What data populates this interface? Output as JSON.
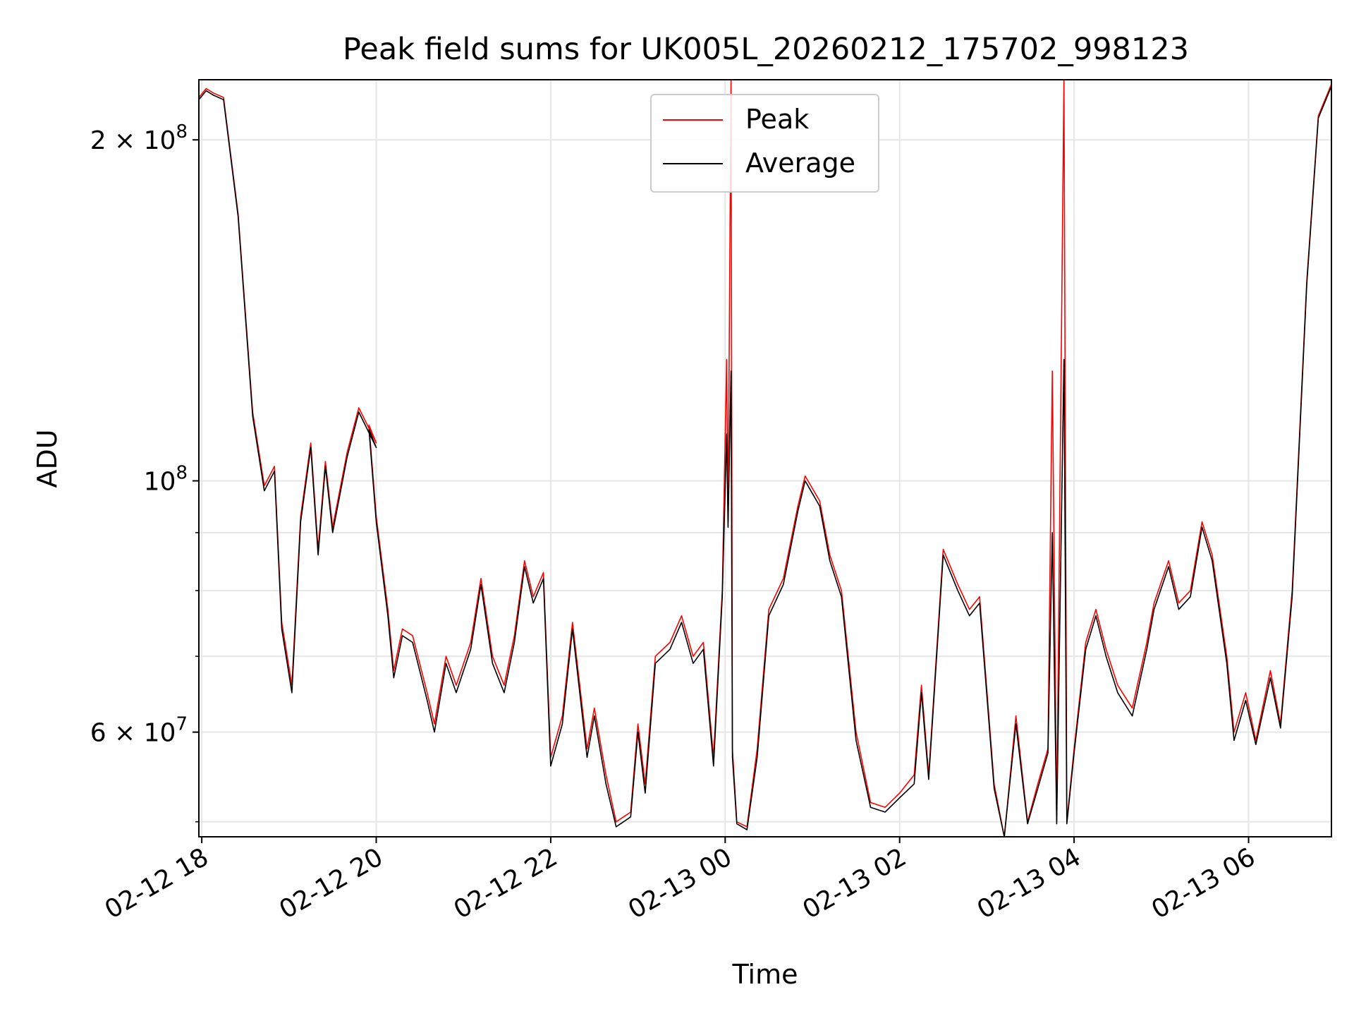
{
  "chart_data": {
    "type": "line",
    "title": "Peak field sums for UK005L_20260212_175702_998123",
    "xlabel": "Time",
    "ylabel": "ADU",
    "x_ticks": [
      "02-12 18",
      "02-12 20",
      "02-12 22",
      "02-13 00",
      "02-13 02",
      "02-13 04",
      "02-13 06"
    ],
    "y_tick_labels": {
      "6e7": "6 × 10",
      "1e8": "10",
      "2e8": "2 × 10"
    },
    "y_tick_exponent": {
      "6e7": "7",
      "1e8": "8",
      "2e8": "8"
    },
    "y_scale": "log",
    "ylim": [
      48500000,
      226000000
    ],
    "xlim": [
      "02-12 17:58",
      "02-13 06:57"
    ],
    "grid": true,
    "legend_position": "upper center",
    "series": [
      {
        "name": "Peak",
        "color": "#ff0000",
        "points": [
          [
            "02-12 17:58",
            218000000
          ],
          [
            "02-12 18:03",
            222000000
          ],
          [
            "02-12 18:08",
            220000000
          ],
          [
            "02-12 18:15",
            218000000
          ],
          [
            "02-12 18:25",
            172000000
          ],
          [
            "02-12 18:35",
            115000000
          ],
          [
            "02-12 18:43",
            99000000
          ],
          [
            "02-12 18:50",
            103000000
          ],
          [
            "02-12 18:55",
            75000000
          ],
          [
            "02-12 19:02",
            66000000
          ],
          [
            "02-12 19:08",
            93000000
          ],
          [
            "02-12 19:15",
            108000000
          ],
          [
            "02-12 19:20",
            87000000
          ],
          [
            "02-12 19:25",
            104000000
          ],
          [
            "02-12 19:30",
            91000000
          ],
          [
            "02-12 19:40",
            106000000
          ],
          [
            "02-12 19:48",
            116000000
          ],
          [
            "02-12 20:00",
            108000000
          ],
          [
            "02-12 19:55",
            112000000
          ],
          [
            "02-12 20:00",
            93000000
          ],
          [
            "02-12 20:08",
            77000000
          ],
          [
            "02-12 20:12",
            68000000
          ],
          [
            "02-12 20:18",
            74000000
          ],
          [
            "02-12 20:25",
            73000000
          ],
          [
            "02-12 20:35",
            65000000
          ],
          [
            "02-12 20:40",
            61000000
          ],
          [
            "02-12 20:48",
            70000000
          ],
          [
            "02-12 20:55",
            66000000
          ],
          [
            "02-12 21:05",
            72000000
          ],
          [
            "02-12 21:12",
            82000000
          ],
          [
            "02-12 21:20",
            70000000
          ],
          [
            "02-12 21:28",
            66000000
          ],
          [
            "02-12 21:35",
            73000000
          ],
          [
            "02-12 21:42",
            85000000
          ],
          [
            "02-12 21:48",
            79000000
          ],
          [
            "02-12 21:55",
            83000000
          ],
          [
            "02-12 22:00",
            57000000
          ],
          [
            "02-12 22:08",
            62000000
          ],
          [
            "02-12 22:15",
            75000000
          ],
          [
            "02-12 22:25",
            58000000
          ],
          [
            "02-12 22:30",
            63000000
          ],
          [
            "02-12 22:38",
            55000000
          ],
          [
            "02-12 22:45",
            50000000
          ],
          [
            "02-12 22:55",
            51000000
          ],
          [
            "02-12 23:00",
            61000000
          ],
          [
            "02-12 23:05",
            54000000
          ],
          [
            "02-12 23:12",
            70000000
          ],
          [
            "02-12 23:22",
            72000000
          ],
          [
            "02-12 23:30",
            76000000
          ],
          [
            "02-12 23:38",
            70000000
          ],
          [
            "02-12 23:45",
            72000000
          ],
          [
            "02-12 23:52",
            57000000
          ],
          [
            "02-12 23:58",
            80000000
          ],
          [
            "02-13 00:01",
            128000000
          ],
          [
            "02-13 00:02",
            92000000
          ],
          [
            "02-13 00:04",
            226000000
          ],
          [
            "02-13 00:05",
            58000000
          ],
          [
            "02-13 00:08",
            50000000
          ],
          [
            "02-13 00:15",
            49500000
          ],
          [
            "02-13 00:22",
            58000000
          ],
          [
            "02-13 00:30",
            77000000
          ],
          [
            "02-13 00:40",
            82000000
          ],
          [
            "02-13 00:50",
            95000000
          ],
          [
            "02-13 00:55",
            101000000
          ],
          [
            "02-13 01:05",
            96000000
          ],
          [
            "02-13 01:12",
            86000000
          ],
          [
            "02-13 01:20",
            80000000
          ],
          [
            "02-13 01:30",
            60000000
          ],
          [
            "02-13 01:40",
            52000000
          ],
          [
            "02-13 01:50",
            51500000
          ],
          [
            "02-13 02:00",
            53000000
          ],
          [
            "02-13 02:10",
            55000000
          ],
          [
            "02-13 02:15",
            66000000
          ],
          [
            "02-13 02:20",
            55000000
          ],
          [
            "02-13 02:30",
            87000000
          ],
          [
            "02-13 02:40",
            81000000
          ],
          [
            "02-13 02:48",
            77000000
          ],
          [
            "02-13 02:55",
            79000000
          ],
          [
            "02-13 03:05",
            54000000
          ],
          [
            "02-13 03:12",
            48500000
          ],
          [
            "02-13 03:20",
            62000000
          ],
          [
            "02-13 03:28",
            50000000
          ],
          [
            "02-13 03:35",
            54000000
          ],
          [
            "02-13 03:42",
            58000000
          ],
          [
            "02-13 03:45",
            125000000
          ],
          [
            "02-13 03:48",
            50000000
          ],
          [
            "02-13 03:53",
            226000000
          ],
          [
            "02-13 03:55",
            50000000
          ],
          [
            "02-13 04:00",
            58000000
          ],
          [
            "02-13 04:08",
            72000000
          ],
          [
            "02-13 04:15",
            77000000
          ],
          [
            "02-13 04:22",
            71000000
          ],
          [
            "02-13 04:30",
            66000000
          ],
          [
            "02-13 04:40",
            63000000
          ],
          [
            "02-13 04:50",
            72000000
          ],
          [
            "02-13 04:55",
            78000000
          ],
          [
            "02-13 05:05",
            85000000
          ],
          [
            "02-13 05:12",
            78000000
          ],
          [
            "02-13 05:20",
            80000000
          ],
          [
            "02-13 05:28",
            92000000
          ],
          [
            "02-13 05:35",
            86000000
          ],
          [
            "02-13 05:45",
            70000000
          ],
          [
            "02-13 05:50",
            60000000
          ],
          [
            "02-13 05:58",
            65000000
          ],
          [
            "02-13 06:05",
            59000000
          ],
          [
            "02-13 06:15",
            68000000
          ],
          [
            "02-13 06:22",
            61000000
          ],
          [
            "02-13 06:30",
            80000000
          ],
          [
            "02-13 06:40",
            150000000
          ],
          [
            "02-13 06:48",
            210000000
          ],
          [
            "02-13 06:57",
            224000000
          ]
        ]
      },
      {
        "name": "Average",
        "color": "#000000",
        "points": [
          [
            "02-12 17:58",
            217000000
          ],
          [
            "02-12 18:03",
            221000000
          ],
          [
            "02-12 18:08",
            219000000
          ],
          [
            "02-12 18:15",
            217000000
          ],
          [
            "02-12 18:25",
            171000000
          ],
          [
            "02-12 18:35",
            114000000
          ],
          [
            "02-12 18:43",
            98000000
          ],
          [
            "02-12 18:50",
            102000000
          ],
          [
            "02-12 18:55",
            74000000
          ],
          [
            "02-12 19:02",
            65000000
          ],
          [
            "02-12 19:08",
            92000000
          ],
          [
            "02-12 19:15",
            107000000
          ],
          [
            "02-12 19:20",
            86000000
          ],
          [
            "02-12 19:25",
            103000000
          ],
          [
            "02-12 19:30",
            90000000
          ],
          [
            "02-12 19:40",
            105000000
          ],
          [
            "02-12 19:48",
            115000000
          ],
          [
            "02-12 20:00",
            107000000
          ],
          [
            "02-12 19:55",
            111000000
          ],
          [
            "02-12 20:00",
            92000000
          ],
          [
            "02-12 20:08",
            76000000
          ],
          [
            "02-12 20:12",
            67000000
          ],
          [
            "02-12 20:18",
            73000000
          ],
          [
            "02-12 20:25",
            72000000
          ],
          [
            "02-12 20:35",
            64000000
          ],
          [
            "02-12 20:40",
            60000000
          ],
          [
            "02-12 20:48",
            69000000
          ],
          [
            "02-12 20:55",
            65000000
          ],
          [
            "02-12 21:05",
            71000000
          ],
          [
            "02-12 21:12",
            81000000
          ],
          [
            "02-12 21:20",
            69000000
          ],
          [
            "02-12 21:28",
            65000000
          ],
          [
            "02-12 21:35",
            72000000
          ],
          [
            "02-12 21:42",
            84000000
          ],
          [
            "02-12 21:48",
            78000000
          ],
          [
            "02-12 21:55",
            82000000
          ],
          [
            "02-12 22:00",
            56000000
          ],
          [
            "02-12 22:08",
            61000000
          ],
          [
            "02-12 22:15",
            74000000
          ],
          [
            "02-12 22:25",
            57000000
          ],
          [
            "02-12 22:30",
            62000000
          ],
          [
            "02-12 22:38",
            54000000
          ],
          [
            "02-12 22:45",
            49500000
          ],
          [
            "02-12 22:55",
            50500000
          ],
          [
            "02-12 23:00",
            60000000
          ],
          [
            "02-12 23:05",
            53000000
          ],
          [
            "02-12 23:12",
            69000000
          ],
          [
            "02-12 23:22",
            71000000
          ],
          [
            "02-12 23:30",
            75000000
          ],
          [
            "02-12 23:38",
            69000000
          ],
          [
            "02-12 23:45",
            71000000
          ],
          [
            "02-12 23:52",
            56000000
          ],
          [
            "02-12 23:58",
            79000000
          ],
          [
            "02-13 00:01",
            110000000
          ],
          [
            "02-13 00:02",
            91000000
          ],
          [
            "02-13 00:04",
            125000000
          ],
          [
            "02-13 00:05",
            57000000
          ],
          [
            "02-13 00:08",
            49800000
          ],
          [
            "02-13 00:15",
            49200000
          ],
          [
            "02-13 00:22",
            57000000
          ],
          [
            "02-13 00:30",
            76000000
          ],
          [
            "02-13 00:40",
            81000000
          ],
          [
            "02-13 00:50",
            94000000
          ],
          [
            "02-13 00:55",
            100000000
          ],
          [
            "02-13 01:05",
            95000000
          ],
          [
            "02-13 01:12",
            85000000
          ],
          [
            "02-13 01:20",
            79000000
          ],
          [
            "02-13 01:30",
            59000000
          ],
          [
            "02-13 01:40",
            51500000
          ],
          [
            "02-13 01:50",
            51000000
          ],
          [
            "02-13 02:00",
            52500000
          ],
          [
            "02-13 02:10",
            54000000
          ],
          [
            "02-13 02:15",
            65000000
          ],
          [
            "02-13 02:20",
            54500000
          ],
          [
            "02-13 02:30",
            86000000
          ],
          [
            "02-13 02:40",
            80000000
          ],
          [
            "02-13 02:48",
            76000000
          ],
          [
            "02-13 02:55",
            78000000
          ],
          [
            "02-13 03:05",
            53500000
          ],
          [
            "02-13 03:12",
            48500000
          ],
          [
            "02-13 03:20",
            61000000
          ],
          [
            "02-13 03:28",
            49800000
          ],
          [
            "02-13 03:35",
            53500000
          ],
          [
            "02-13 03:42",
            57500000
          ],
          [
            "02-13 03:45",
            90000000
          ],
          [
            "02-13 03:48",
            49800000
          ],
          [
            "02-13 03:53",
            128000000
          ],
          [
            "02-13 03:55",
            49800000
          ],
          [
            "02-13 04:00",
            57500000
          ],
          [
            "02-13 04:08",
            71000000
          ],
          [
            "02-13 04:15",
            76000000
          ],
          [
            "02-13 04:22",
            70000000
          ],
          [
            "02-13 04:30",
            65000000
          ],
          [
            "02-13 04:40",
            62000000
          ],
          [
            "02-13 04:50",
            71000000
          ],
          [
            "02-13 04:55",
            77000000
          ],
          [
            "02-13 05:05",
            84000000
          ],
          [
            "02-13 05:12",
            77000000
          ],
          [
            "02-13 05:20",
            79000000
          ],
          [
            "02-13 05:28",
            91000000
          ],
          [
            "02-13 05:35",
            85000000
          ],
          [
            "02-13 05:45",
            69000000
          ],
          [
            "02-13 05:50",
            59000000
          ],
          [
            "02-13 05:58",
            64000000
          ],
          [
            "02-13 06:05",
            58500000
          ],
          [
            "02-13 06:15",
            67000000
          ],
          [
            "02-13 06:22",
            60500000
          ],
          [
            "02-13 06:30",
            79000000
          ],
          [
            "02-13 06:40",
            149000000
          ],
          [
            "02-13 06:48",
            209000000
          ],
          [
            "02-13 06:57",
            223000000
          ]
        ]
      }
    ]
  }
}
